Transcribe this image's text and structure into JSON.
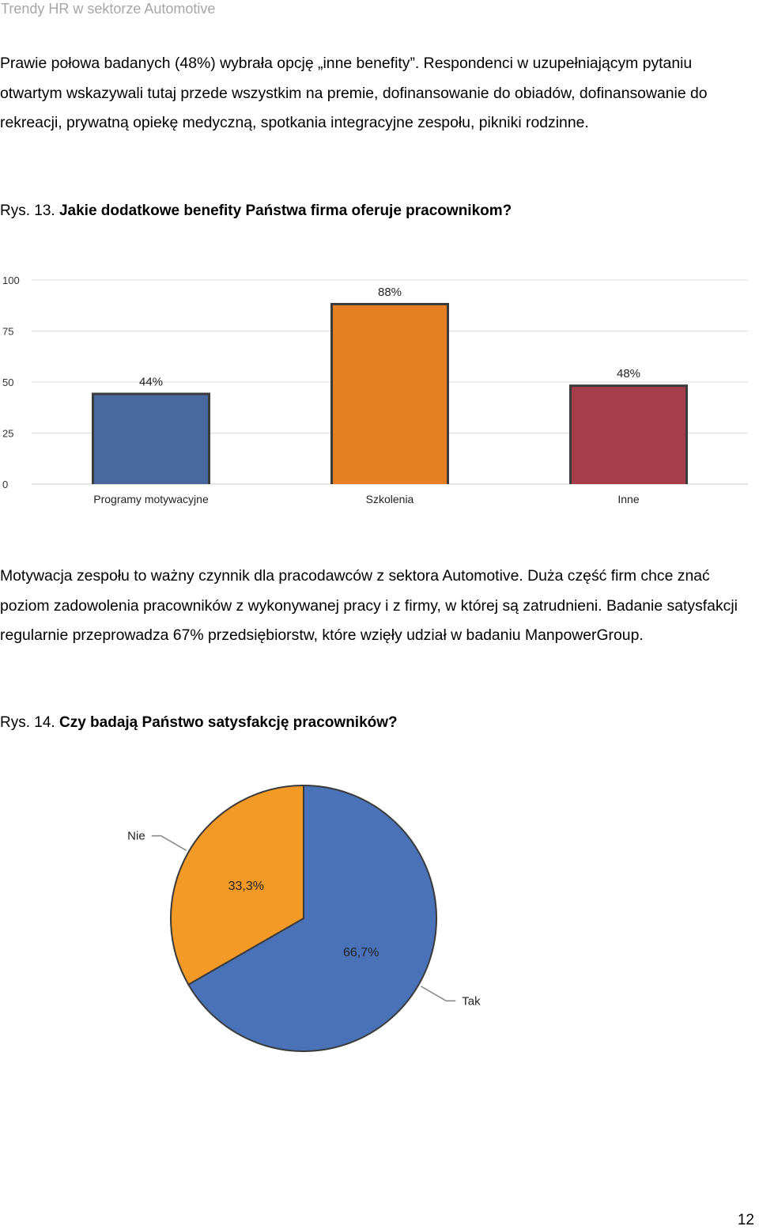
{
  "header": {
    "running_title": "Trendy HR w sektorze Automotive"
  },
  "paragraphs": {
    "p1": "Prawie połowa badanych (48%) wybrała opcję „inne benefity”. Respondenci w uzupełniającym pytaniu otwartym wskazywali tutaj przede wszystkim na premie, dofinansowanie do obiadów, dofinansowanie do rekreacji, prywatną opiekę medyczną, spotkania integracyjne zespołu, pikniki rodzinne.",
    "p2": "Motywacja zespołu to ważny czynnik dla pracodawców z sektora Automotive. Duża część firm chce znać poziom zadowolenia pracowników z wykonywanej pracy i z firmy, w której są zatrudnieni. Badanie satysfakcji regularnie przeprowadza 67% przedsiębiorstw, które wzięły udział w badaniu ManpowerGroup."
  },
  "captions": {
    "fig13_num": "Rys. 13.",
    "fig13_question": "Jakie dodatkowe benefity Państwa firma oferuje pracownikom?",
    "fig14_num": "Rys. 14.",
    "fig14_question": "Czy badają Państwo satysfakcję pracowników?"
  },
  "chart_data": [
    {
      "type": "bar",
      "categories": [
        "Programy motywacyjne",
        "Szkolenia",
        "Inne"
      ],
      "values": [
        44,
        88,
        48
      ],
      "value_labels": [
        "44%",
        "88%",
        "48%"
      ],
      "ylim": [
        0,
        100
      ],
      "yticks": [
        0,
        25,
        50,
        75,
        100
      ],
      "grid": true,
      "colors": [
        "#49699e",
        "#e67e22",
        "#a63d4a"
      ]
    },
    {
      "type": "pie",
      "labels": [
        "Tak",
        "Nie"
      ],
      "values": [
        66.7,
        33.3
      ],
      "value_labels": [
        "66,7%",
        "33,3%"
      ],
      "colors": [
        "#4a72b8",
        "#f39a26"
      ]
    }
  ],
  "footer": {
    "page_number": "12"
  }
}
